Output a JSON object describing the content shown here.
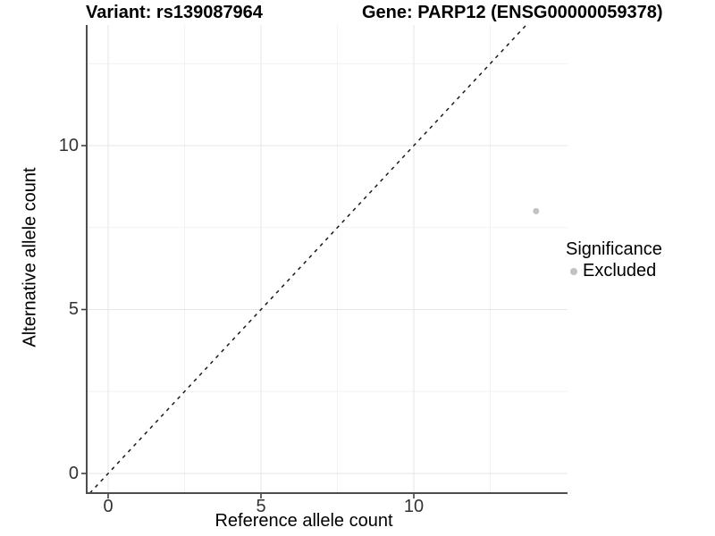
{
  "chart_data": {
    "type": "scatter",
    "title_left": "Variant: rs139087964",
    "title_right": "Gene: PARP12 (ENSG00000059378)",
    "xlabel": "Reference allele count",
    "ylabel": "Alternative allele count",
    "x_ticks": [
      "0",
      "5",
      "10"
    ],
    "y_ticks": [
      "0",
      "5",
      "10"
    ],
    "xlim": [
      -0.7,
      15.0
    ],
    "ylim": [
      -0.6,
      13.7
    ],
    "grid": "major and minor gridlines, very light gray on white panel",
    "series": [
      {
        "name": "Excluded",
        "color": "#c2c2c2",
        "points": [
          {
            "x": 14,
            "y": 8
          }
        ]
      }
    ],
    "reference_line": {
      "slope": 1,
      "intercept": 0,
      "style": "dashed",
      "color": "#1a1a1a"
    },
    "legend": {
      "position": "right",
      "title": "Significance",
      "items": [
        {
          "label": "Excluded",
          "color": "#c2c2c2"
        }
      ]
    }
  }
}
